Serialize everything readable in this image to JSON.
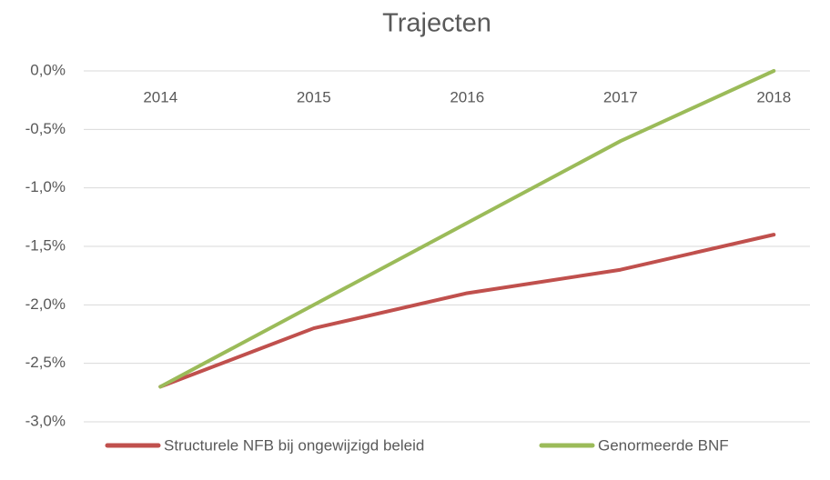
{
  "chart_data": {
    "type": "line",
    "title": "Trajecten",
    "categories": [
      "2014",
      "2015",
      "2016",
      "2017",
      "2018"
    ],
    "series": [
      {
        "name": "Structurele NFB bij ongewijzigd beleid",
        "color": "#c0504d",
        "values": [
          -2.7,
          -2.2,
          -1.9,
          -1.7,
          -1.4
        ]
      },
      {
        "name": "Genormeerde BNF",
        "color": "#9bbb59",
        "values": [
          -2.7,
          -2.0,
          -1.3,
          -0.6,
          0.0
        ]
      }
    ],
    "ylim": [
      -3.0,
      0.0
    ],
    "yticks": [
      {
        "value": 0.0,
        "label": "0,0%"
      },
      {
        "value": -0.5,
        "label": "-0,5%"
      },
      {
        "value": -1.0,
        "label": "-1,0%"
      },
      {
        "value": -1.5,
        "label": "-1,5%"
      },
      {
        "value": -2.0,
        "label": "-2,0%"
      },
      {
        "value": -2.5,
        "label": "-2,5%"
      },
      {
        "value": -3.0,
        "label": "-3,0%"
      }
    ],
    "grid": true,
    "legend": "bottom"
  }
}
